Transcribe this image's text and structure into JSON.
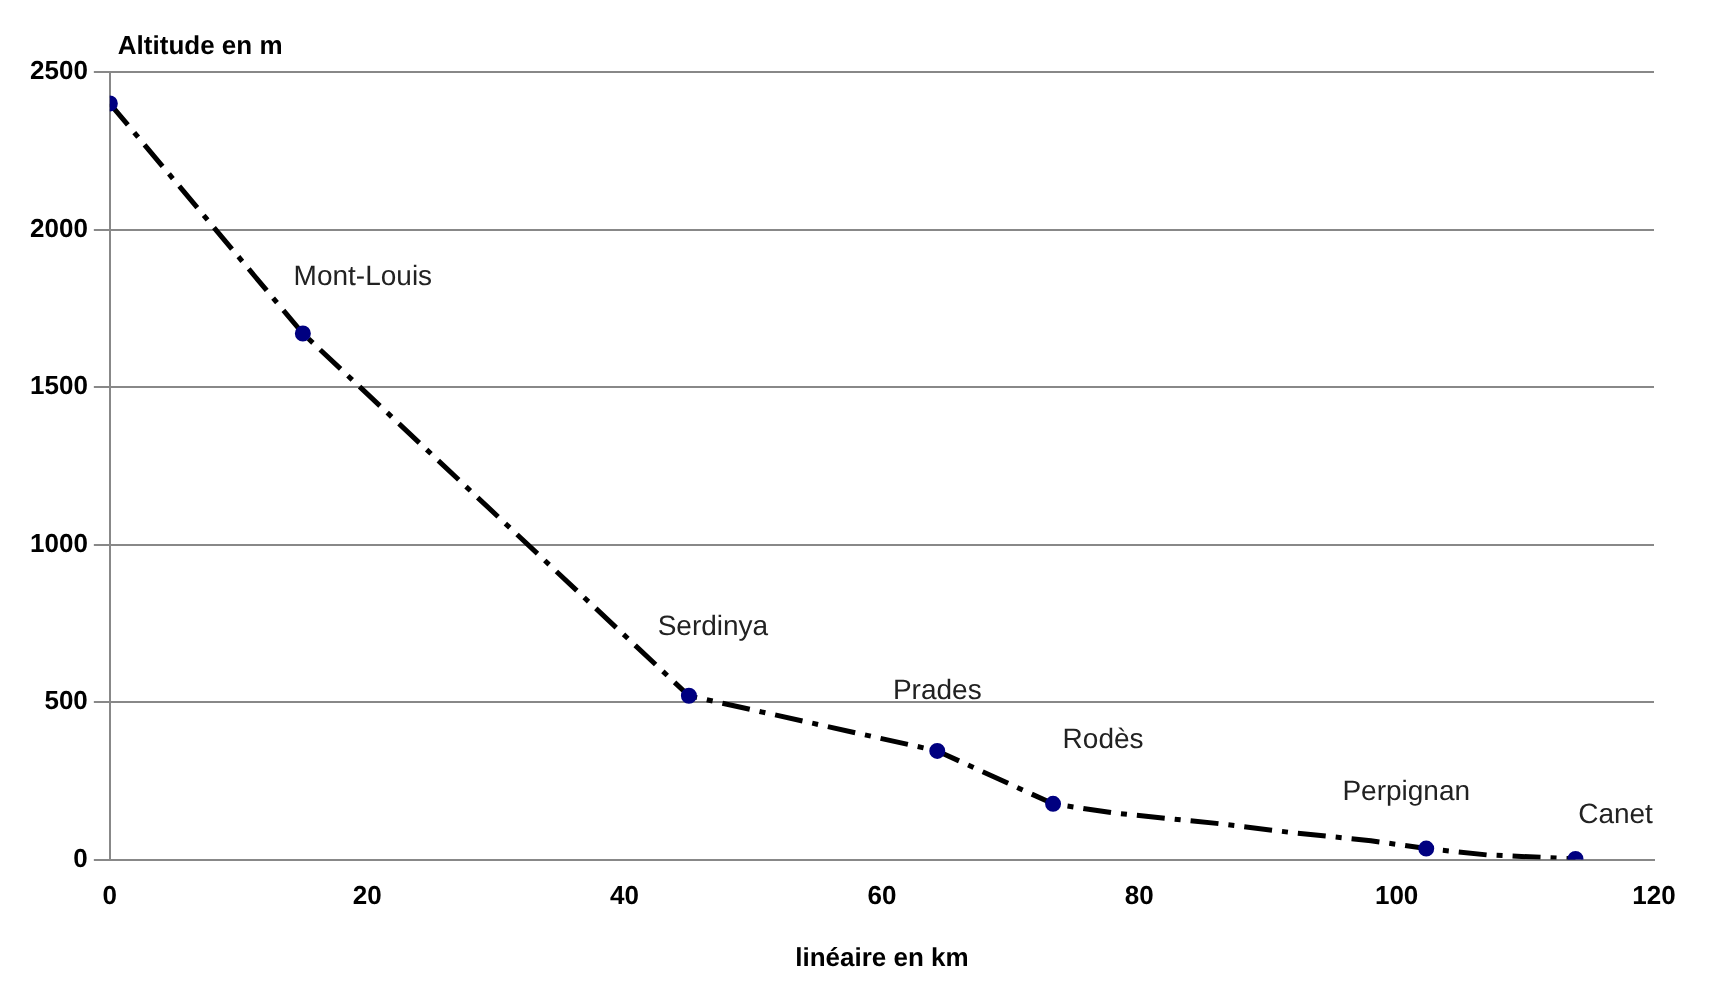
{
  "chart_data": {
    "type": "line",
    "ylabel": "Altitude en m",
    "xlabel": "linéaire en km",
    "xlim": [
      0,
      120
    ],
    "xticks": [
      0,
      20,
      40,
      60,
      80,
      100,
      120
    ],
    "ylim": [
      0,
      2500
    ],
    "yticks": [
      0,
      500,
      1000,
      1500,
      2000,
      2500
    ],
    "grid": "y",
    "legend": false,
    "series": [
      {
        "type": "line",
        "color": "#000000",
        "marker": "none",
        "line_style": "dashed",
        "x": [
          0,
          15,
          45,
          64.3,
          73.3,
          78,
          86,
          92,
          98,
          102.3,
          107,
          113.9
        ],
        "values": [
          2400,
          1670,
          520,
          345,
          177,
          148,
          115,
          85,
          60,
          35,
          15,
          2
        ]
      },
      {
        "type": "scatter",
        "color": "#000080",
        "marker": "circle",
        "x": [
          0,
          15,
          45,
          64.3,
          73.3,
          102.3,
          113.9
        ],
        "values": [
          2400,
          1670,
          520,
          345,
          177,
          35,
          2
        ]
      }
    ],
    "annotations": [
      {
        "text": "Mont-Louis",
        "x": 15,
        "y": 1670
      },
      {
        "text": "Serdinya",
        "x": 45,
        "y": 520
      },
      {
        "text": "Prades",
        "x": 64.3,
        "y": 345
      },
      {
        "text": "Rodès",
        "x": 73.3,
        "y": 177
      },
      {
        "text": "Perpignan",
        "x": 102.3,
        "y": 35
      },
      {
        "text": "Canet",
        "x": 113.9,
        "y": 2
      }
    ]
  }
}
